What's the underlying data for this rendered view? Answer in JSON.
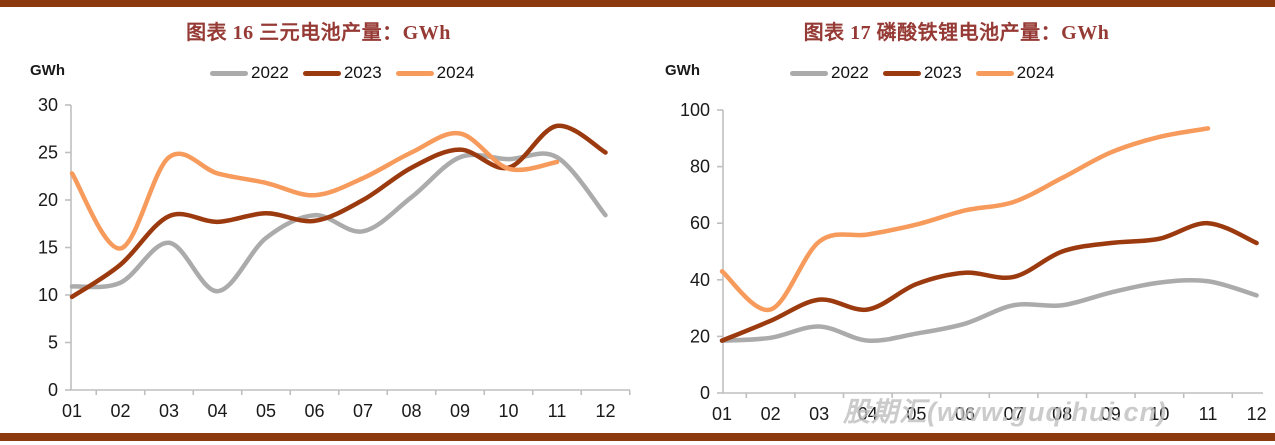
{
  "page": {
    "background": "#FFFFFF",
    "accent_bar_color": "#8C3A0D",
    "watermark": "股期汇(www.guqihui.cn)"
  },
  "colors": {
    "title": "#963A35",
    "axis_line": "#BFBFBF",
    "tick_label": "#1A1A1A",
    "watermark": "#BFBFBF"
  },
  "chart_data": [
    {
      "type": "line",
      "title": "图表 16 三元电池产量：GWh",
      "ylabel": "GWh",
      "xlabel": "",
      "categories": [
        "01",
        "02",
        "03",
        "04",
        "05",
        "06",
        "07",
        "08",
        "09",
        "10",
        "11",
        "12"
      ],
      "ylim": [
        0,
        30
      ],
      "yticks": [
        0,
        5,
        10,
        15,
        20,
        25,
        30
      ],
      "grid": false,
      "legend_position": "top",
      "series": [
        {
          "name": "2022",
          "color": "#ABABAB",
          "values": [
            10.9,
            11.3,
            15.5,
            10.4,
            16.0,
            18.4,
            16.7,
            20.3,
            24.5,
            24.3,
            24.5,
            18.4
          ]
        },
        {
          "name": "2023",
          "color": "#9C3A0F",
          "values": [
            9.8,
            13.2,
            18.3,
            17.7,
            18.6,
            17.8,
            20.0,
            23.4,
            25.3,
            23.4,
            27.8,
            25.0
          ]
        },
        {
          "name": "2024",
          "color": "#F79B5C",
          "values": [
            22.8,
            14.9,
            24.5,
            22.8,
            21.8,
            20.5,
            22.3,
            25.0,
            27.0,
            23.3,
            24.0,
            null
          ]
        }
      ]
    },
    {
      "type": "line",
      "title": "图表 17 磷酸铁锂电池产量：GWh",
      "ylabel": "GWh",
      "xlabel": "",
      "categories": [
        "01",
        "02",
        "03",
        "04",
        "05",
        "06",
        "07",
        "08",
        "09",
        "10",
        "11",
        "12"
      ],
      "ylim": [
        0,
        100
      ],
      "yticks": [
        0,
        20,
        40,
        60,
        80,
        100
      ],
      "grid": false,
      "legend_position": "top",
      "series": [
        {
          "name": "2022",
          "color": "#ABABAB",
          "values": [
            18.5,
            19.5,
            23.5,
            18.5,
            21.0,
            24.5,
            31.0,
            31.0,
            35.5,
            39.0,
            39.5,
            34.5
          ]
        },
        {
          "name": "2023",
          "color": "#9C3A0F",
          "values": [
            18.5,
            25.5,
            33.0,
            29.5,
            38.5,
            42.5,
            41.0,
            50.0,
            53.0,
            54.5,
            60.0,
            53.0
          ]
        },
        {
          "name": "2024",
          "color": "#F79B5C",
          "values": [
            43.0,
            29.5,
            53.5,
            56.0,
            59.5,
            64.5,
            67.5,
            76.0,
            85.0,
            90.5,
            93.5,
            null
          ]
        }
      ]
    }
  ]
}
